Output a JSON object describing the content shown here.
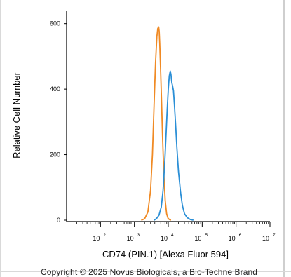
{
  "chart_data": {
    "type": "line",
    "title": "",
    "xlabel": "CD74 (PIN.1) [Alexa Fluor 594]",
    "ylabel": "Relative Cell Number",
    "x_scale": "log",
    "xlim": [
      10,
      10000000
    ],
    "ylim": [
      0,
      640
    ],
    "x_ticks": [
      {
        "value": 100,
        "label": "10",
        "exp": "2"
      },
      {
        "value": 1000,
        "label": "10",
        "exp": "3"
      },
      {
        "value": 10000,
        "label": "10",
        "exp": "4"
      },
      {
        "value": 100000,
        "label": "10",
        "exp": "5"
      },
      {
        "value": 1000000,
        "label": "10",
        "exp": "6"
      },
      {
        "value": 10000000,
        "label": "10",
        "exp": "7"
      }
    ],
    "y_ticks": [
      0,
      200,
      400,
      600
    ],
    "grid": false,
    "series": [
      {
        "color": "#f08a24",
        "x": [
          1600,
          2000,
          2500,
          3000,
          3400,
          3800,
          4200,
          4600,
          4900,
          5200,
          5400,
          5600,
          5900,
          6300,
          6800,
          7400,
          8100,
          8900,
          9800,
          10800,
          12000
        ],
        "y": [
          0,
          4,
          25,
          90,
          200,
          350,
          480,
          560,
          585,
          590,
          575,
          540,
          470,
          370,
          250,
          140,
          60,
          20,
          6,
          2,
          0
        ]
      },
      {
        "color": "#2b8fd6",
        "x": [
          3800,
          4500,
          5300,
          6200,
          7000,
          7800,
          8600,
          9300,
          10000,
          10700,
          11400,
          12000,
          12700,
          13400,
          14200,
          15200,
          16500,
          18000,
          20000,
          23000,
          26000,
          30000,
          36000,
          45000,
          55000
        ],
        "y": [
          0,
          5,
          15,
          40,
          90,
          170,
          260,
          340,
          400,
          440,
          455,
          445,
          420,
          410,
          395,
          350,
          290,
          220,
          150,
          85,
          45,
          20,
          8,
          2,
          0
        ]
      }
    ]
  },
  "footer": {
    "copyright": "Copyright © 2025 Novus Biologicals, a Bio-Techne Brand"
  }
}
